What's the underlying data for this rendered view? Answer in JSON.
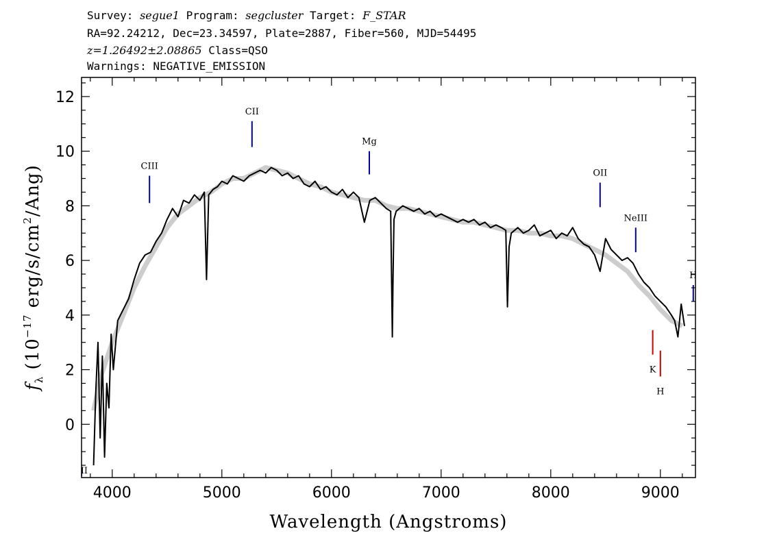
{
  "header": {
    "survey_label": "Survey:",
    "survey": "segue1",
    "program_label": "Program:",
    "program": "segcluster",
    "target_label": "Target:",
    "target": "F_STAR",
    "line2": "RA=92.24212, Dec=23.34597, Plate=2887, Fiber=560, MJD=54495",
    "redshift": "z=1.26492±2.08865",
    "class_text": "Class=QSO",
    "warnings": "Warnings: NEGATIVE_EMISSION"
  },
  "chart_data": {
    "type": "line",
    "xlabel": "Wavelength (Angstroms)",
    "ylabel_prefix": "f",
    "ylabel_sub": "λ",
    "ylabel_mid": " (10",
    "ylabel_exp": "−17",
    "ylabel_units": " erg/s/cm",
    "ylabel_sq": "2",
    "ylabel_end": "/Ang)",
    "xlim": [
      3720,
      9320
    ],
    "ylim": [
      -1.95,
      12.7
    ],
    "xticks": [
      4000,
      5000,
      6000,
      7000,
      8000,
      9000
    ],
    "yticks": [
      0,
      2,
      4,
      6,
      8,
      10,
      12
    ],
    "grid": false,
    "series": [
      {
        "color": "#000000",
        "x": [
          3830,
          3850,
          3870,
          3890,
          3910,
          3930,
          3950,
          3970,
          3990,
          4010,
          4050,
          4100,
          4150,
          4200,
          4250,
          4300,
          4350,
          4400,
          4450,
          4500,
          4550,
          4600,
          4650,
          4700,
          4750,
          4800,
          4840,
          4860,
          4880,
          4920,
          4960,
          5000,
          5050,
          5100,
          5150,
          5200,
          5250,
          5300,
          5350,
          5400,
          5450,
          5500,
          5550,
          5600,
          5650,
          5700,
          5750,
          5800,
          5850,
          5900,
          5950,
          6000,
          6050,
          6100,
          6150,
          6200,
          6250,
          6300,
          6350,
          6400,
          6450,
          6500,
          6540,
          6555,
          6562,
          6570,
          6590,
          6650,
          6700,
          6750,
          6800,
          6850,
          6900,
          6950,
          7000,
          7050,
          7100,
          7150,
          7200,
          7250,
          7300,
          7350,
          7400,
          7450,
          7500,
          7550,
          7590,
          7605,
          7620,
          7640,
          7700,
          7750,
          7800,
          7850,
          7900,
          7950,
          8000,
          8050,
          8100,
          8150,
          8200,
          8250,
          8300,
          8350,
          8400,
          8450,
          8500,
          8550,
          8600,
          8650,
          8700,
          8750,
          8800,
          8850,
          8900,
          8950,
          9000,
          9050,
          9100,
          9130,
          9160,
          9190,
          9220
        ],
        "y": [
          -1.5,
          1.2,
          3.0,
          -0.5,
          2.5,
          -1.2,
          1.5,
          0.6,
          3.3,
          2.0,
          3.8,
          4.2,
          4.6,
          5.3,
          5.9,
          6.2,
          6.3,
          6.7,
          7.0,
          7.5,
          7.9,
          7.6,
          8.2,
          8.1,
          8.4,
          8.2,
          8.5,
          5.3,
          8.4,
          8.6,
          8.7,
          8.9,
          8.8,
          9.1,
          9.0,
          8.9,
          9.1,
          9.2,
          9.3,
          9.2,
          9.4,
          9.3,
          9.1,
          9.2,
          9.0,
          9.1,
          8.8,
          8.7,
          8.9,
          8.6,
          8.7,
          8.5,
          8.4,
          8.6,
          8.3,
          8.5,
          8.3,
          7.4,
          8.2,
          8.3,
          8.1,
          7.9,
          7.8,
          3.2,
          5.5,
          7.5,
          7.8,
          8.0,
          7.9,
          7.8,
          7.9,
          7.7,
          7.8,
          7.6,
          7.7,
          7.6,
          7.5,
          7.4,
          7.5,
          7.4,
          7.5,
          7.3,
          7.4,
          7.2,
          7.3,
          7.2,
          7.1,
          4.3,
          6.5,
          7.0,
          7.2,
          7.0,
          7.1,
          7.3,
          6.9,
          7.0,
          7.1,
          6.8,
          7.0,
          6.9,
          7.2,
          6.8,
          6.6,
          6.5,
          6.2,
          5.6,
          6.8,
          6.4,
          6.2,
          6.0,
          6.1,
          5.9,
          5.5,
          5.2,
          5.0,
          4.7,
          4.5,
          4.3,
          4.0,
          3.8,
          3.2,
          4.4,
          3.6
        ]
      },
      {
        "color": "#c0c0c0",
        "x": [
          3830,
          3900,
          4000,
          4100,
          4200,
          4300,
          4400,
          4500,
          4600,
          4700,
          4800,
          4900,
          5000,
          5100,
          5200,
          5300,
          5400,
          5500,
          5600,
          5700,
          5800,
          5900,
          6000,
          6100,
          6200,
          6300,
          6400,
          6500,
          6600,
          6700,
          6800,
          6900,
          7000,
          7100,
          7200,
          7300,
          7400,
          7500,
          7600,
          7700,
          7800,
          7900,
          8000,
          8100,
          8200,
          8300,
          8400,
          8500,
          8600,
          8700,
          8800,
          8900,
          9000,
          9100,
          9200
        ],
        "y": [
          0.5,
          1.8,
          3.0,
          4.0,
          5.0,
          5.8,
          6.5,
          7.2,
          7.7,
          8.0,
          8.3,
          8.5,
          8.8,
          9.0,
          9.0,
          9.2,
          9.4,
          9.3,
          9.2,
          9.0,
          8.8,
          8.7,
          8.5,
          8.4,
          8.3,
          8.2,
          8.2,
          8.0,
          7.9,
          7.9,
          7.8,
          7.7,
          7.6,
          7.5,
          7.4,
          7.4,
          7.3,
          7.2,
          7.1,
          7.1,
          7.0,
          7.0,
          6.9,
          6.9,
          6.8,
          6.6,
          6.4,
          6.2,
          5.9,
          5.6,
          5.1,
          4.7,
          4.2,
          3.8,
          3.6
        ]
      }
    ],
    "line_markers": [
      {
        "label": "CIII",
        "x": 4340,
        "y0": 8.1,
        "y1": 9.1,
        "color": "#0000aa",
        "label_y": 9.35
      },
      {
        "label": "CII",
        "x": 5275,
        "y0": 10.15,
        "y1": 11.1,
        "color": "#0000aa",
        "label_y": 11.35
      },
      {
        "label": "Mg",
        "x": 6345,
        "y0": 9.15,
        "y1": 10.0,
        "color": "#0000aa",
        "label_y": 10.25
      },
      {
        "label": "OII",
        "x": 8450,
        "y0": 7.95,
        "y1": 8.85,
        "color": "#0000aa",
        "label_y": 9.1
      },
      {
        "label": "NeIII",
        "x": 8775,
        "y0": 6.3,
        "y1": 7.2,
        "color": "#0000aa",
        "label_y": 7.45
      },
      {
        "label": "H",
        "x": 9300,
        "y0": 4.5,
        "y1": 5.1,
        "color": "#0000aa",
        "label_y": 5.35
      },
      {
        "label": "K",
        "x": 8930,
        "y0": 2.55,
        "y1": 3.45,
        "color": "#cc0000",
        "label_y": 1.9
      },
      {
        "label": "H",
        "x": 9000,
        "y0": 1.75,
        "y1": 2.7,
        "color": "#cc0000",
        "label_y": 1.1
      },
      {
        "label": "eII",
        "x": 3720,
        "y0": -1.9,
        "y1": -1.6,
        "color": "#0000aa",
        "label_y": -1.8
      }
    ]
  }
}
